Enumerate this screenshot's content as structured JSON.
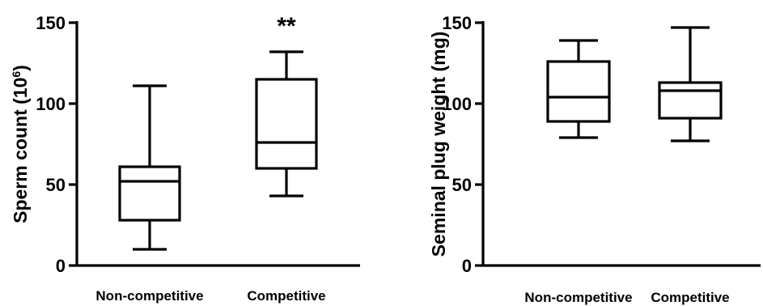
{
  "chart_data": [
    {
      "type": "boxplot",
      "title": "",
      "xlabel": "",
      "ylabel": "Sperm count (10",
      "ylabel_sup": "6",
      "ylabel_suffix": ")",
      "ylim": [
        0,
        150
      ],
      "yticks": [
        0,
        50,
        100,
        150
      ],
      "grid": false,
      "categories": [
        "Non-competitive",
        "Competitive"
      ],
      "boxes": [
        {
          "min": 10,
          "q1": 28,
          "median": 52,
          "q3": 61,
          "max": 111
        },
        {
          "min": 43,
          "q1": 60,
          "median": 76,
          "q3": 115,
          "max": 132
        }
      ],
      "annotations": [
        {
          "category": "Competitive",
          "text": "**"
        }
      ]
    },
    {
      "type": "boxplot",
      "title": "",
      "xlabel": "",
      "ylabel": "Seminal plug weight (mg)",
      "ylim": [
        0,
        150
      ],
      "yticks": [
        0,
        50,
        100,
        150
      ],
      "grid": false,
      "categories": [
        "Non-competitive",
        "Competitive"
      ],
      "boxes": [
        {
          "min": 79,
          "q1": 89,
          "median": 104,
          "q3": 126,
          "max": 139
        },
        {
          "min": 77,
          "q1": 91,
          "median": 108,
          "q3": 113,
          "max": 147
        }
      ],
      "annotations": []
    }
  ]
}
